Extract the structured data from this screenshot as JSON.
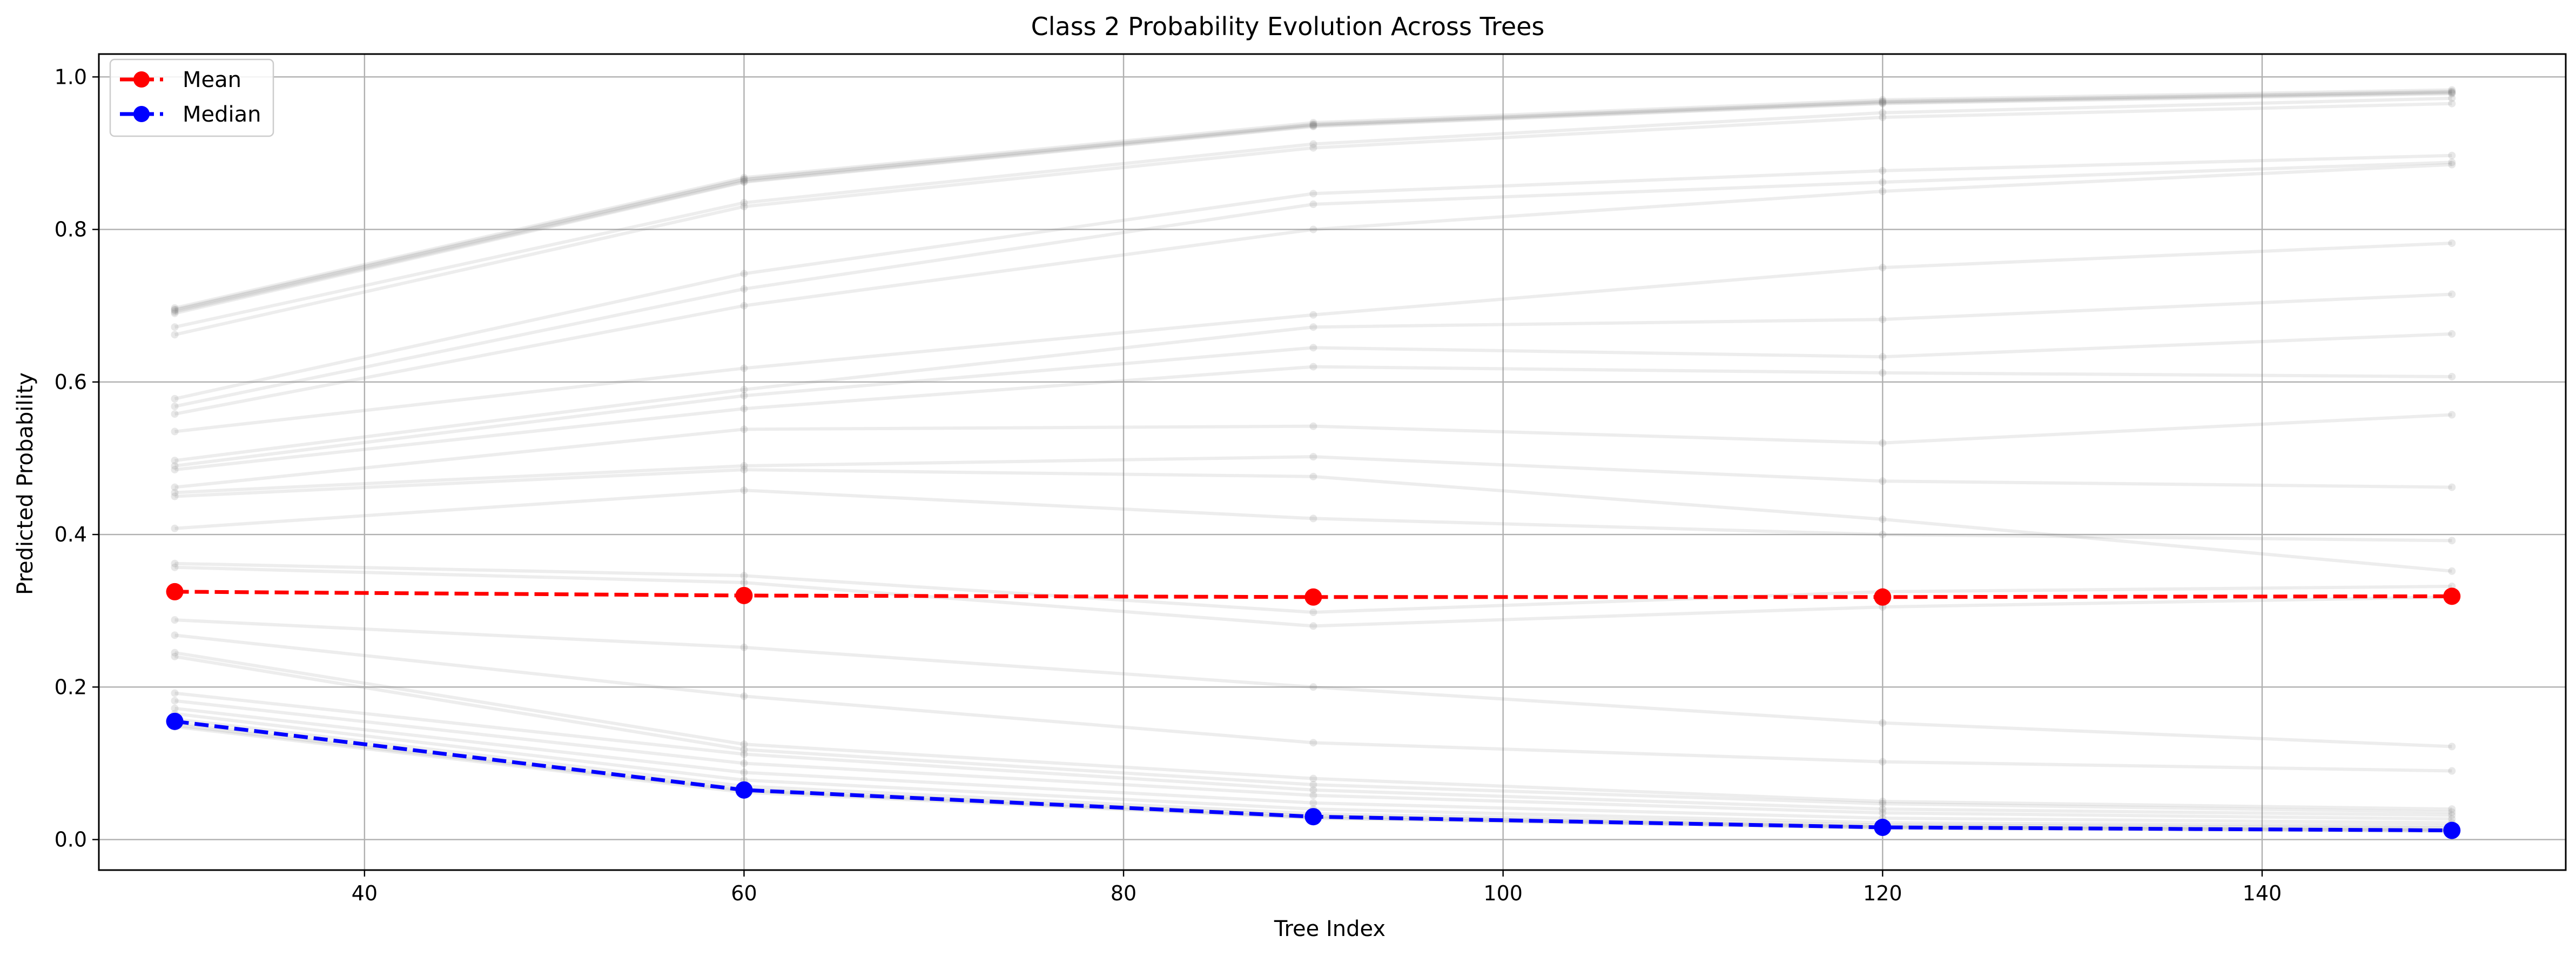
{
  "chart_data": {
    "type": "line",
    "title": "Class 2 Probability Evolution Across Trees",
    "xlabel": "Tree Index",
    "ylabel": "Predicted Probability",
    "xlim": [
      26,
      156
    ],
    "ylim": [
      -0.04,
      1.03
    ],
    "xticks": [
      40,
      60,
      80,
      100,
      120,
      140
    ],
    "yticks": [
      0.0,
      0.2,
      0.4,
      0.6,
      0.8,
      1.0
    ],
    "x": [
      30,
      60,
      90,
      120,
      150
    ],
    "grid": true,
    "legend_position": "top-left",
    "legend": [
      {
        "name": "Mean",
        "color": "#ff0000"
      },
      {
        "name": "Median",
        "color": "#0000ff"
      }
    ],
    "series": [
      {
        "name": "Mean",
        "color": "#ff0000",
        "style": "dashed",
        "values": [
          0.325,
          0.32,
          0.318,
          0.318,
          0.319
        ]
      },
      {
        "name": "Median",
        "color": "#0000ff",
        "style": "dashed",
        "values": [
          0.155,
          0.065,
          0.03,
          0.016,
          0.012
        ]
      }
    ],
    "sample_curves": [
      [
        0.697,
        0.868,
        0.94,
        0.97,
        0.983
      ],
      [
        0.695,
        0.866,
        0.938,
        0.968,
        0.981
      ],
      [
        0.694,
        0.865,
        0.937,
        0.967,
        0.98
      ],
      [
        0.692,
        0.863,
        0.936,
        0.966,
        0.979
      ],
      [
        0.69,
        0.862,
        0.935,
        0.965,
        0.978
      ],
      [
        0.672,
        0.835,
        0.912,
        0.953,
        0.972
      ],
      [
        0.662,
        0.83,
        0.907,
        0.947,
        0.965
      ],
      [
        0.578,
        0.742,
        0.847,
        0.877,
        0.897
      ],
      [
        0.568,
        0.722,
        0.833,
        0.862,
        0.888
      ],
      [
        0.558,
        0.7,
        0.8,
        0.85,
        0.885
      ],
      [
        0.535,
        0.618,
        0.688,
        0.75,
        0.782
      ],
      [
        0.497,
        0.59,
        0.672,
        0.682,
        0.715
      ],
      [
        0.49,
        0.582,
        0.645,
        0.633,
        0.663
      ],
      [
        0.485,
        0.565,
        0.62,
        0.612,
        0.607
      ],
      [
        0.462,
        0.538,
        0.542,
        0.52,
        0.557
      ],
      [
        0.455,
        0.49,
        0.502,
        0.47,
        0.462
      ],
      [
        0.45,
        0.485,
        0.476,
        0.42,
        0.352
      ],
      [
        0.408,
        0.458,
        0.421,
        0.4,
        0.392
      ],
      [
        0.362,
        0.346,
        0.298,
        0.325,
        0.332
      ],
      [
        0.357,
        0.337,
        0.28,
        0.305,
        0.318
      ],
      [
        0.288,
        0.252,
        0.2,
        0.153,
        0.122
      ],
      [
        0.268,
        0.188,
        0.127,
        0.102,
        0.09
      ],
      [
        0.245,
        0.125,
        0.08,
        0.05,
        0.04
      ],
      [
        0.24,
        0.118,
        0.072,
        0.047,
        0.036
      ],
      [
        0.192,
        0.112,
        0.065,
        0.04,
        0.032
      ],
      [
        0.182,
        0.1,
        0.058,
        0.035,
        0.027
      ],
      [
        0.172,
        0.088,
        0.048,
        0.028,
        0.022
      ],
      [
        0.165,
        0.078,
        0.04,
        0.022,
        0.018
      ],
      [
        0.158,
        0.07,
        0.034,
        0.019,
        0.015
      ],
      [
        0.153,
        0.066,
        0.031,
        0.017,
        0.013
      ],
      [
        0.15,
        0.064,
        0.029,
        0.016,
        0.012
      ],
      [
        0.148,
        0.062,
        0.028,
        0.015,
        0.011
      ]
    ]
  }
}
